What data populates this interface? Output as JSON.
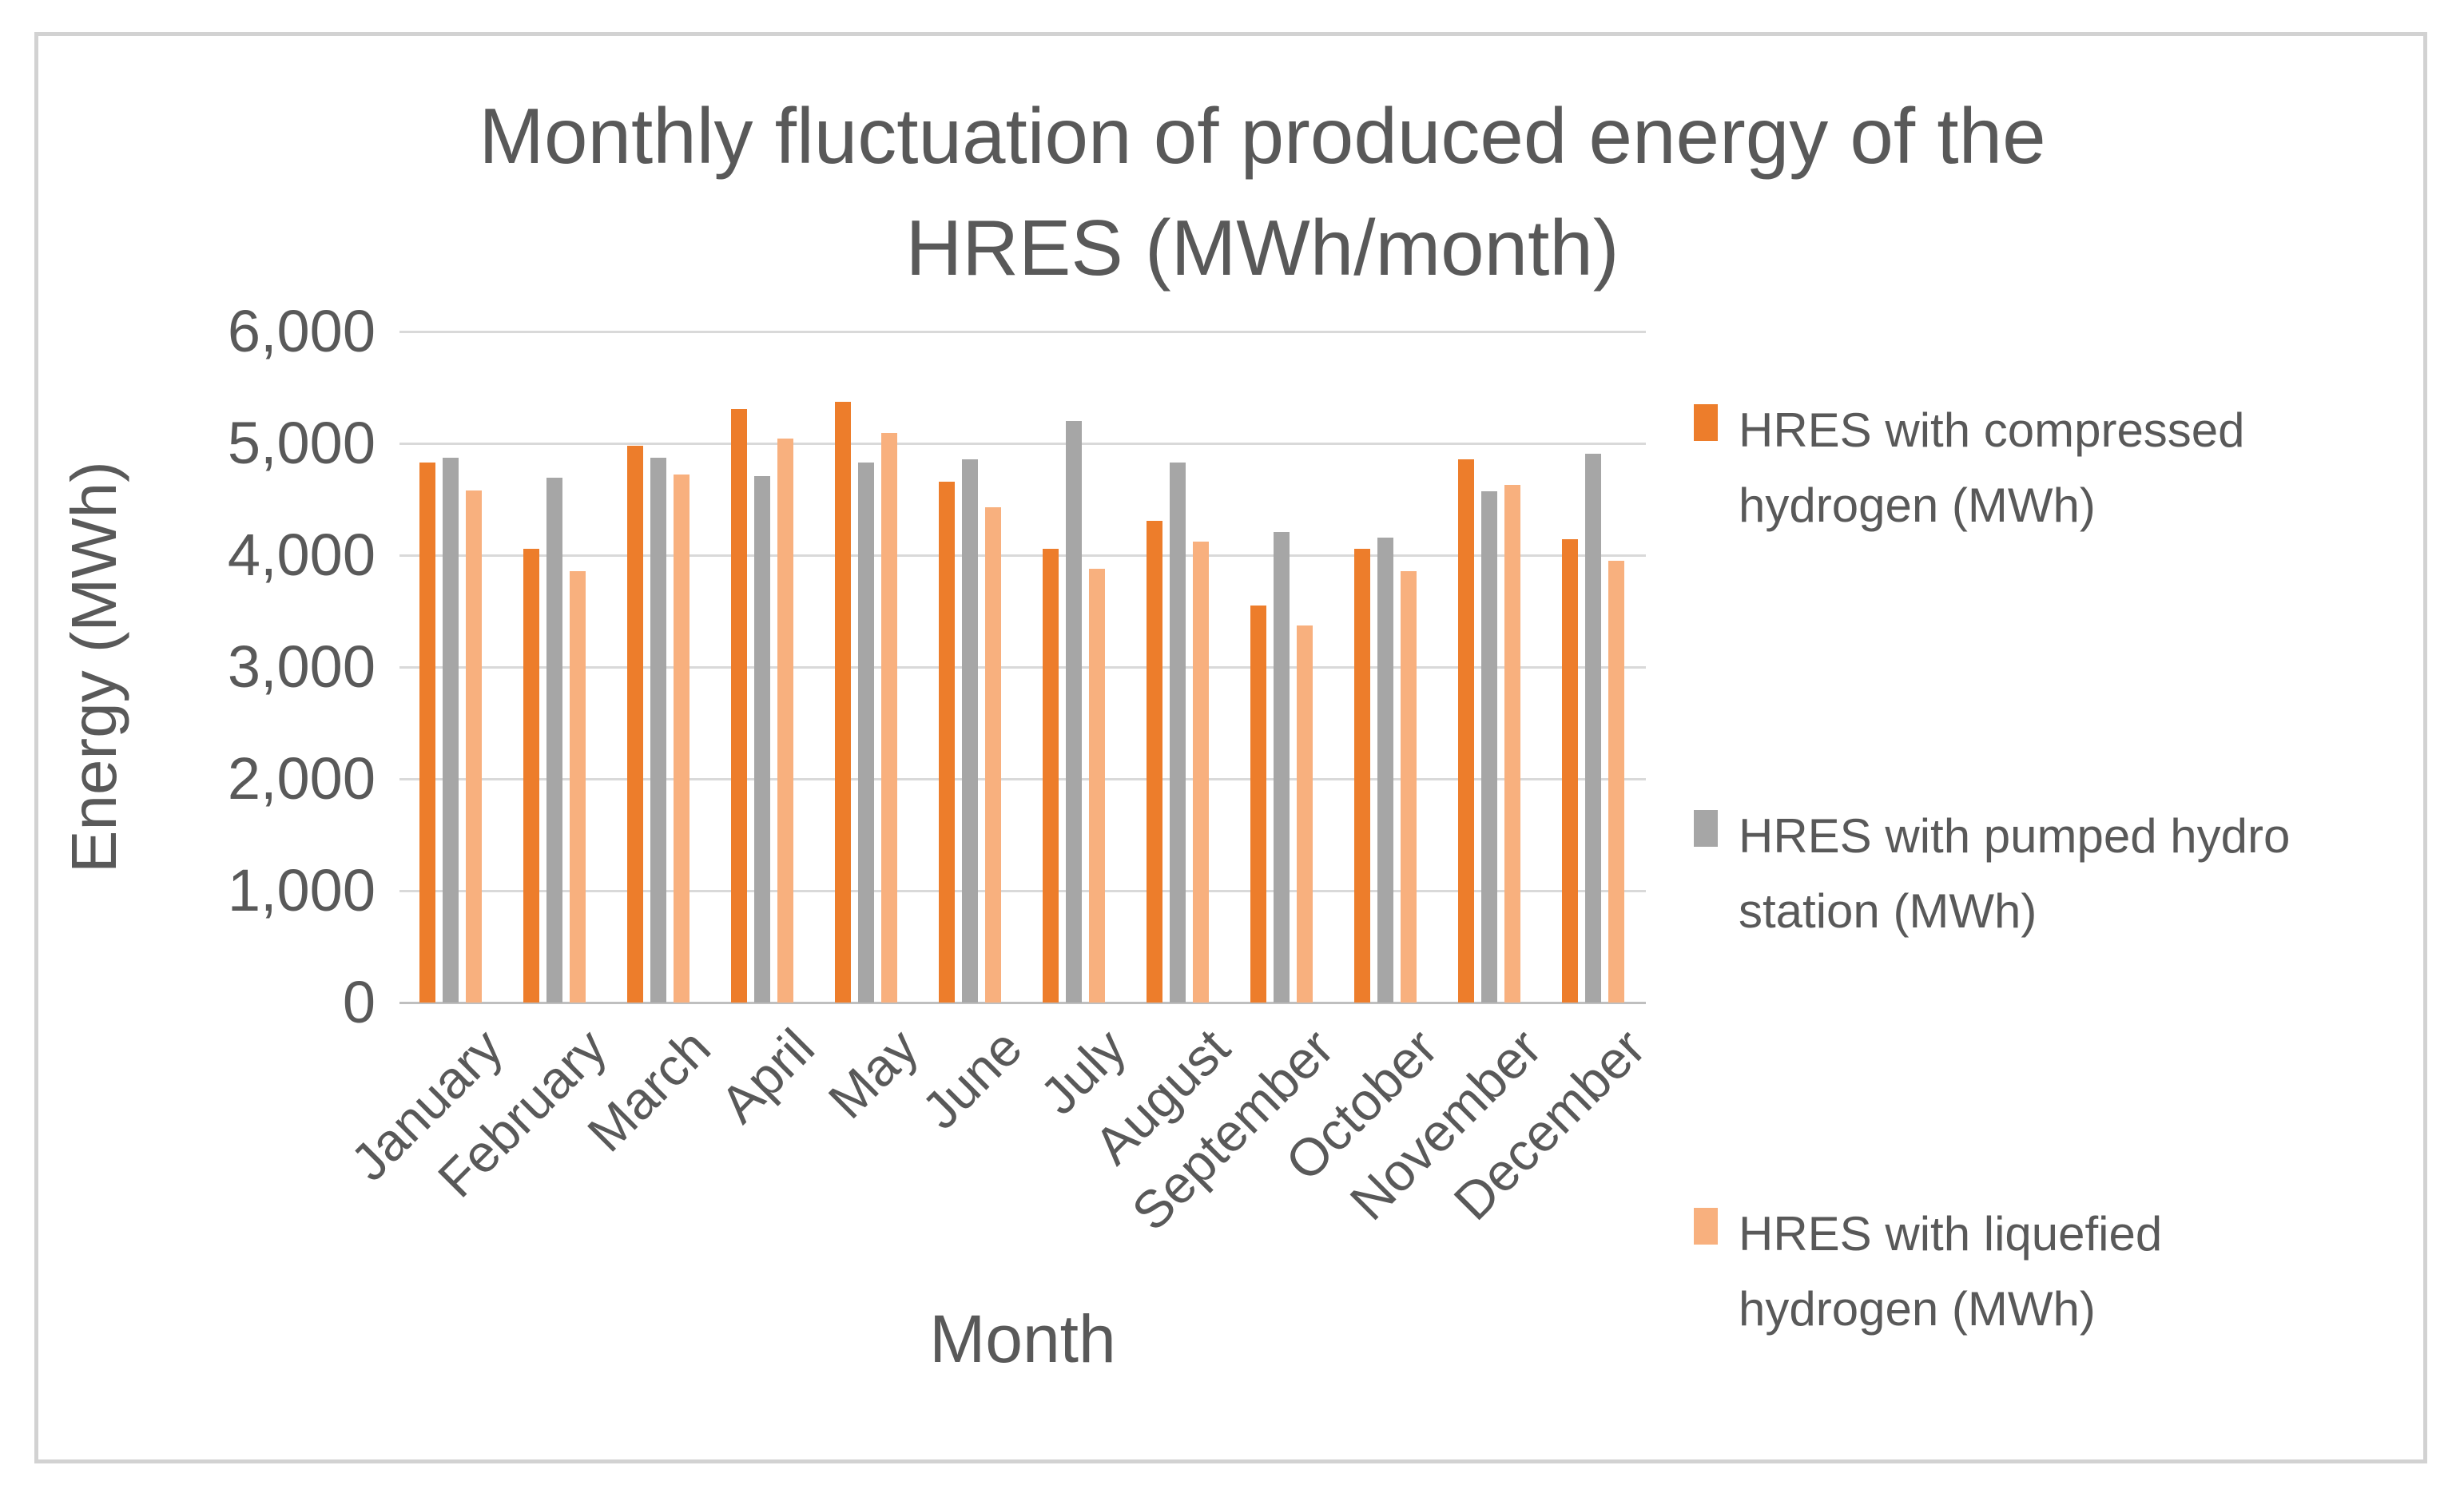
{
  "chart_data": {
    "type": "bar",
    "title": "Monthly fluctuation of produced energy of the HRES (MWh/month)",
    "title_lines": [
      "Monthly fluctuation of produced energy of the",
      "HRES (MWh/month)"
    ],
    "xlabel": "Month",
    "ylabel": "Energy (MWh)",
    "ylim": [
      0,
      6000
    ],
    "ytick_step": 1000,
    "ytick_labels": [
      "0",
      "1,000",
      "2,000",
      "3,000",
      "4,000",
      "5,000",
      "6,000"
    ],
    "grid": true,
    "legend_position": "right",
    "categories": [
      "January",
      "February",
      "March",
      "April",
      "May",
      "June",
      "July",
      "August",
      "September",
      "October",
      "November",
      "December"
    ],
    "series": [
      {
        "name": "HRES with compressed hydrogen (MWh)",
        "legend_lines": [
          "HRES with compressed",
          "hydrogen (MWh)"
        ],
        "color": "#ED7D2B",
        "values": [
          4830,
          4060,
          4980,
          5310,
          5370,
          4660,
          4060,
          4310,
          3550,
          4060,
          4860,
          4140
        ]
      },
      {
        "name": "HRES with pumped hydro station (MWh)",
        "legend_lines": [
          "HRES with pumped hydro",
          "station (MWh)"
        ],
        "color": "#A6A6A6",
        "values": [
          4870,
          4690,
          4870,
          4710,
          4830,
          4860,
          5200,
          4830,
          4210,
          4160,
          4570,
          4910
        ]
      },
      {
        "name": "HRES with liquefied hydrogen (MWh)",
        "legend_lines": [
          "HRES with liquefied",
          "hydrogen (MWh)"
        ],
        "color": "#F8B07E",
        "values": [
          4580,
          3860,
          4720,
          5040,
          5090,
          4430,
          3880,
          4120,
          3370,
          3860,
          4630,
          3950
        ]
      }
    ]
  },
  "style_colors": {
    "text": "#595959",
    "gridline": "#D9D9D9",
    "axis_line": "#BFBFBF",
    "frame_border": "#D2D2D2",
    "background": "#FFFFFF"
  }
}
